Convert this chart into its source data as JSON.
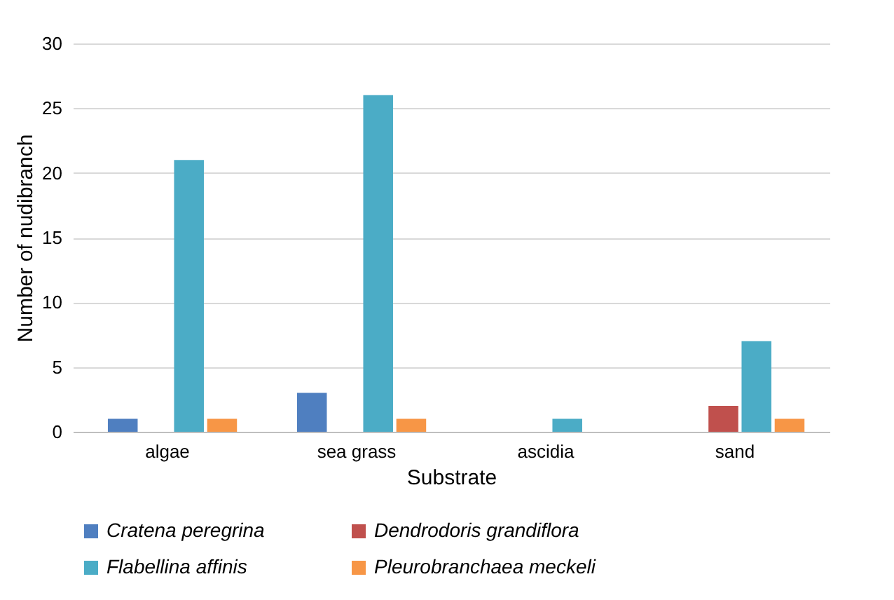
{
  "chart_data": {
    "type": "bar",
    "xlabel": "Substrate",
    "ylabel": "Number of nudibranch",
    "categories": [
      "algae",
      "sea grass",
      "ascidia",
      "sand"
    ],
    "series": [
      {
        "name": "Cratena peregrina",
        "color": "#4f7fc0",
        "values": [
          1,
          3,
          0,
          0
        ]
      },
      {
        "name": "Dendrodoris grandiflora",
        "color": "#c0504d",
        "values": [
          0,
          0,
          0,
          2
        ]
      },
      {
        "name": "Flabellina affinis",
        "color": "#4bacc6",
        "values": [
          21,
          26,
          1,
          7
        ]
      },
      {
        "name": "Pleurobranchaea meckeli",
        "color": "#f79646",
        "values": [
          1,
          1,
          0,
          1
        ]
      }
    ],
    "ylim": [
      0,
      30
    ],
    "yticks": [
      0,
      5,
      10,
      15,
      20,
      25,
      30
    ],
    "grid": "y",
    "legend": "bottom"
  }
}
